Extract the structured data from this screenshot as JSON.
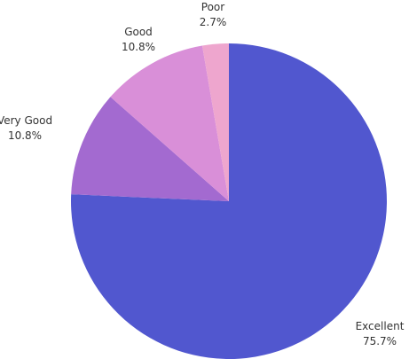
{
  "chart_data": {
    "type": "pie",
    "start_angle_deg": 0,
    "direction": "clockwise",
    "title": "",
    "slices": [
      {
        "label": "Excellent",
        "value": 75.7,
        "value_label": "75.7%",
        "color": "#5157cf"
      },
      {
        "label": "Very Good",
        "value": 10.8,
        "value_label": "10.8%",
        "color": "#a36ad0"
      },
      {
        "label": "Good",
        "value": 10.8,
        "value_label": "10.8%",
        "color": "#d98fd8"
      },
      {
        "label": "Poor",
        "value": 2.7,
        "value_label": "2.7%",
        "color": "#eea6ce"
      }
    ],
    "legend": "none",
    "labels": "outside"
  }
}
